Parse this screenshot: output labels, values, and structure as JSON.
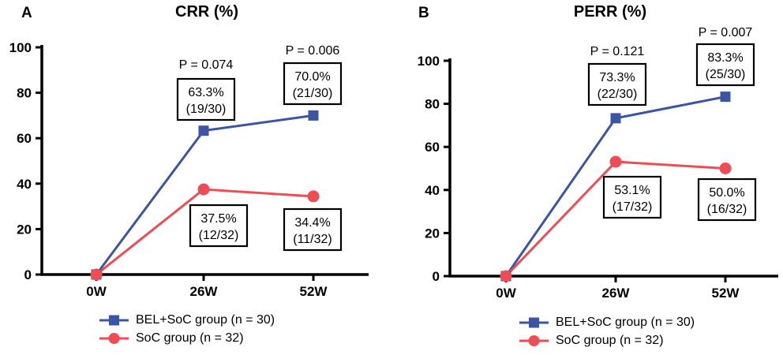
{
  "figure": {
    "colors": {
      "bel_soc_blue": "#3B55A4",
      "soc_red": "#EE4D55",
      "axis_black": "#000000",
      "box_bg": "#FFFFFF"
    }
  },
  "chart_data": [
    {
      "type": "line",
      "panel_label": "A",
      "title": "CRR (%)",
      "x_categories": [
        "0W",
        "26W",
        "52W"
      ],
      "xlabel": "",
      "ylabel": "",
      "ylim": [
        0,
        100
      ],
      "yticks": [
        0,
        20,
        40,
        60,
        80,
        100
      ],
      "grid": false,
      "legend_position": "bottom",
      "series": [
        {
          "name": "BEL+SoC group (n = 30)",
          "color": "#3B55A4",
          "marker": "square",
          "values": [
            0,
            63.3,
            70.0
          ]
        },
        {
          "name": "SoC group (n = 32)",
          "color": "#EE4D55",
          "marker": "circle",
          "values": [
            0,
            37.5,
            34.4
          ]
        }
      ],
      "annotations": [
        {
          "series": 0,
          "point": 1,
          "value": "63.3%",
          "fraction": "(19/30)"
        },
        {
          "series": 0,
          "point": 2,
          "value": "70.0%",
          "fraction": "(21/30)"
        },
        {
          "series": 1,
          "point": 1,
          "value": "37.5%",
          "fraction": "(12/32)"
        },
        {
          "series": 1,
          "point": 2,
          "value": "34.4%",
          "fraction": "(11/32)"
        }
      ],
      "p_values": [
        {
          "point": 1,
          "label": "P = 0.074"
        },
        {
          "point": 2,
          "label": "P = 0.006"
        }
      ]
    },
    {
      "type": "line",
      "panel_label": "B",
      "title": "PERR (%)",
      "x_categories": [
        "0W",
        "26W",
        "52W"
      ],
      "xlabel": "",
      "ylabel": "",
      "ylim": [
        0,
        100
      ],
      "yticks": [
        0,
        20,
        40,
        60,
        80,
        100
      ],
      "grid": false,
      "legend_position": "bottom",
      "series": [
        {
          "name": "BEL+SoC group (n = 30)",
          "color": "#3B55A4",
          "marker": "square",
          "values": [
            0,
            73.3,
            83.3
          ]
        },
        {
          "name": "SoC group (n = 32)",
          "color": "#EE4D55",
          "marker": "circle",
          "values": [
            0,
            53.1,
            50.0
          ]
        }
      ],
      "annotations": [
        {
          "series": 0,
          "point": 1,
          "value": "73.3%",
          "fraction": "(22/30)"
        },
        {
          "series": 0,
          "point": 2,
          "value": "83.3%",
          "fraction": "(25/30)"
        },
        {
          "series": 1,
          "point": 1,
          "value": "53.1%",
          "fraction": "(17/32)"
        },
        {
          "series": 1,
          "point": 2,
          "value": "50.0%",
          "fraction": "(16/32)"
        }
      ],
      "p_values": [
        {
          "point": 1,
          "label": "P = 0.121"
        },
        {
          "point": 2,
          "label": "P = 0.007"
        }
      ]
    }
  ]
}
